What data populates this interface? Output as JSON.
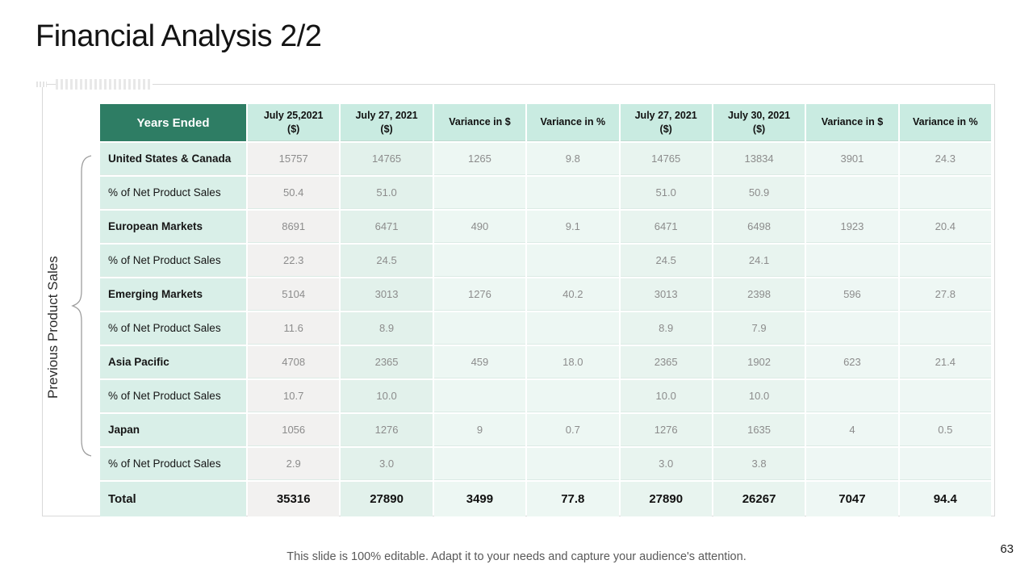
{
  "slide": {
    "title": "Financial Analysis 2/2",
    "side_label": "Previous Product Sales",
    "footer_note": "This slide is 100% editable. Adapt it to your needs and capture your audience's attention.",
    "page_number": "63"
  },
  "colors": {
    "header_green": "#2e7d64",
    "header_mint": "#c9ebe1",
    "label_column_mint": "#d9efe8",
    "first_value_column_gray": "#f2f1f0",
    "value_cell_mint": "#e8f4ef",
    "value_text_gray": "#8c8c8c",
    "footer_text_gray": "#595959"
  },
  "table": {
    "headers": [
      "Years Ended",
      "July 25,2021\n($)",
      "July 27, 2021\n($)",
      "Variance in $",
      "Variance in %",
      "July 27, 2021\n($)",
      "July 30, 2021\n($)",
      "Variance in $",
      "Variance in %"
    ],
    "rows": [
      {
        "label": "United States & Canada",
        "bold": true,
        "total": false,
        "values": [
          "15757",
          "14765",
          "1265",
          "9.8",
          "14765",
          "13834",
          "3901",
          "24.3"
        ]
      },
      {
        "label": "% of Net Product Sales",
        "bold": false,
        "total": false,
        "values": [
          "50.4",
          "51.0",
          "",
          "",
          "51.0",
          "50.9",
          "",
          ""
        ]
      },
      {
        "label": "European Markets",
        "bold": true,
        "total": false,
        "values": [
          "8691",
          "6471",
          "490",
          "9.1",
          "6471",
          "6498",
          "1923",
          "20.4"
        ]
      },
      {
        "label": "% of Net Product Sales",
        "bold": false,
        "total": false,
        "values": [
          "22.3",
          "24.5",
          "",
          "",
          "24.5",
          "24.1",
          "",
          ""
        ]
      },
      {
        "label": "Emerging Markets",
        "bold": true,
        "total": false,
        "values": [
          "5104",
          "3013",
          "1276",
          "40.2",
          "3013",
          "2398",
          "596",
          "27.8"
        ]
      },
      {
        "label": "% of Net Product Sales",
        "bold": false,
        "total": false,
        "values": [
          "11.6",
          "8.9",
          "",
          "",
          "8.9",
          "7.9",
          "",
          ""
        ]
      },
      {
        "label": "Asia Pacific",
        "bold": true,
        "total": false,
        "values": [
          "4708",
          "2365",
          "459",
          "18.0",
          "2365",
          "1902",
          "623",
          "21.4"
        ]
      },
      {
        "label": "% of Net Product Sales",
        "bold": false,
        "total": false,
        "values": [
          "10.7",
          "10.0",
          "",
          "",
          "10.0",
          "10.0",
          "",
          ""
        ]
      },
      {
        "label": "Japan",
        "bold": true,
        "total": false,
        "values": [
          "1056",
          "1276",
          "9",
          "0.7",
          "1276",
          "1635",
          "4",
          "0.5"
        ]
      },
      {
        "label": "% of Net Product Sales",
        "bold": false,
        "total": false,
        "values": [
          "2.9",
          "3.0",
          "",
          "",
          "3.0",
          "3.8",
          "",
          ""
        ]
      },
      {
        "label": "Total",
        "bold": true,
        "total": true,
        "values": [
          "35316",
          "27890",
          "3499",
          "77.8",
          "27890",
          "26267",
          "7047",
          "94.4"
        ]
      }
    ]
  }
}
